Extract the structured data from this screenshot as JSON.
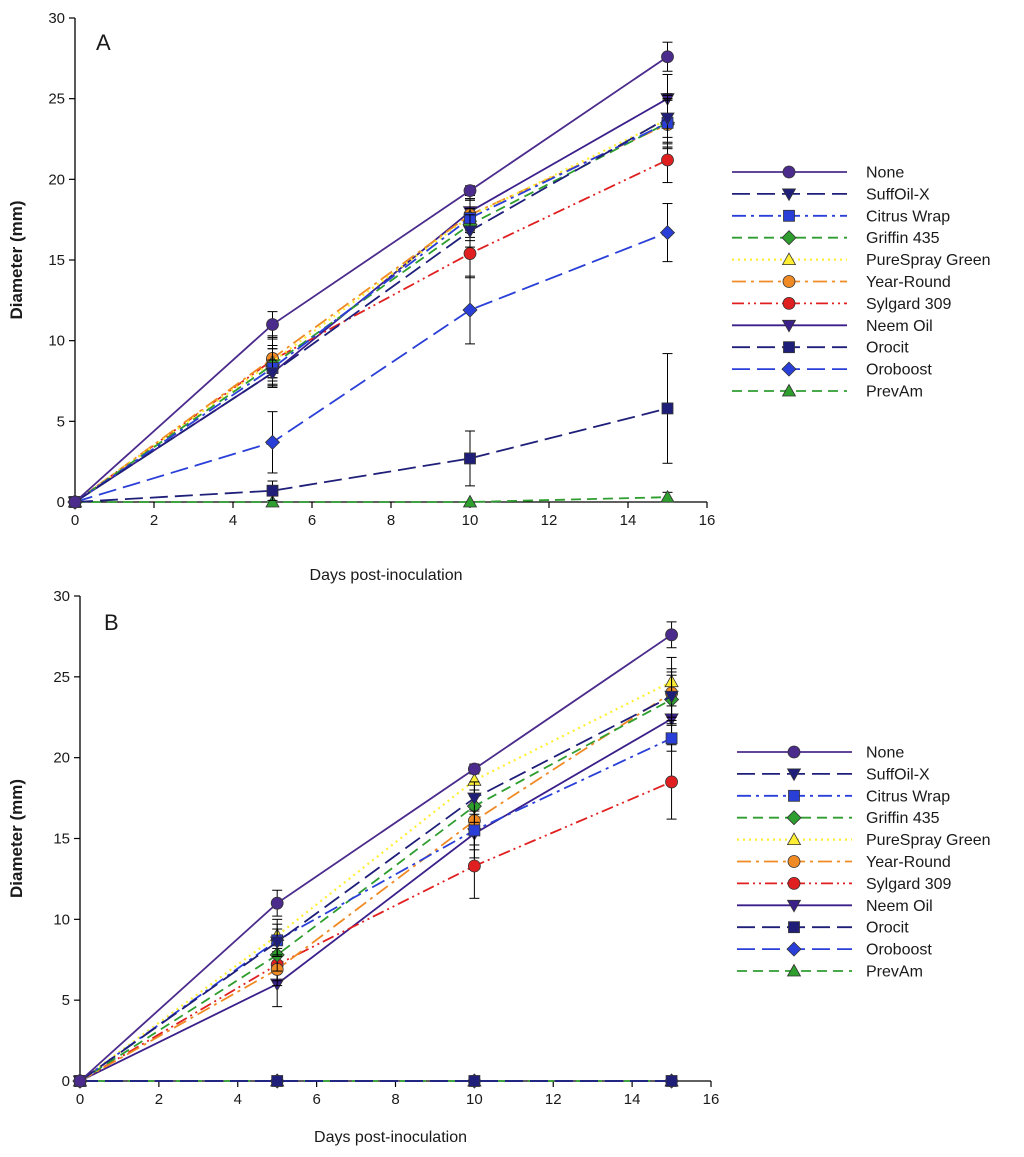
{
  "figure": {
    "background": "#ffffff"
  },
  "chart_data": [
    {
      "type": "line",
      "panel_label": "A",
      "xlabel": "Days post-inoculation",
      "ylabel": "Diameter (mm)",
      "xlim": [
        0,
        16
      ],
      "ylim": [
        0,
        30
      ],
      "xticks": [
        0,
        2,
        4,
        6,
        8,
        10,
        12,
        14,
        16
      ],
      "yticks": [
        0,
        5,
        10,
        15,
        20,
        25,
        30
      ],
      "x": [
        0,
        5,
        10,
        15
      ],
      "legend_position": "right",
      "series": [
        {
          "name": "None",
          "values": [
            0,
            11.0,
            19.3,
            27.6
          ],
          "errors": [
            0,
            0.8,
            0.3,
            0.9
          ],
          "color": "#4b2b8c",
          "marker": "circle",
          "dash": "solid"
        },
        {
          "name": "SuffOil-X",
          "values": [
            0,
            8.0,
            16.8,
            23.8
          ],
          "errors": [
            0,
            0.8,
            1.0,
            1.5
          ],
          "color": "#1f1f7a",
          "marker": "triangle-down",
          "dash": "longdash"
        },
        {
          "name": "Citrus Wrap",
          "values": [
            0,
            8.3,
            17.6,
            23.5
          ],
          "errors": [
            0,
            1.2,
            1.2,
            1.5
          ],
          "color": "#2a3fd8",
          "marker": "square",
          "dash": "dashdot"
        },
        {
          "name": "Griffin 435",
          "values": [
            0,
            8.5,
            17.2,
            23.5
          ],
          "errors": [
            0,
            1.0,
            1.0,
            1.5
          ],
          "color": "#2e9e2e",
          "marker": "diamond",
          "dash": "dash"
        },
        {
          "name": "PureSpray Green",
          "values": [
            0,
            8.7,
            17.7,
            23.7
          ],
          "errors": [
            0,
            1.0,
            1.0,
            1.5
          ],
          "color": "#ffee33",
          "marker": "triangle-up",
          "dash": "dot"
        },
        {
          "name": "Year-Round",
          "values": [
            0,
            8.9,
            17.8,
            23.4
          ],
          "errors": [
            0,
            1.2,
            1.0,
            1.5
          ],
          "color": "#f08a24",
          "marker": "circle",
          "dash": "dashdot"
        },
        {
          "name": "Sylgard 309",
          "values": [
            0,
            8.8,
            15.4,
            21.2
          ],
          "errors": [
            0,
            1.5,
            1.5,
            1.4
          ],
          "color": "#e02020",
          "marker": "circle",
          "dash": "dashdotdot"
        },
        {
          "name": "Neem Oil",
          "values": [
            0,
            8.0,
            18.0,
            25.0
          ],
          "errors": [
            0,
            0.8,
            1.0,
            1.5
          ],
          "color": "#3b1f8a",
          "marker": "triangle-down",
          "dash": "solid"
        },
        {
          "name": "Orocit",
          "values": [
            0,
            0.7,
            2.7,
            5.8
          ],
          "errors": [
            0,
            0.6,
            1.7,
            3.4
          ],
          "color": "#1f1f7a",
          "marker": "square",
          "dash": "longdash"
        },
        {
          "name": "Oroboost",
          "values": [
            0,
            3.7,
            11.9,
            16.7
          ],
          "errors": [
            0,
            1.9,
            2.1,
            1.8
          ],
          "color": "#2a3fd8",
          "marker": "diamond",
          "dash": "longdash"
        },
        {
          "name": "PrevAm",
          "values": [
            0,
            0.0,
            0.0,
            0.3
          ],
          "errors": [
            0,
            0,
            0,
            0.3
          ],
          "color": "#2e9e2e",
          "marker": "triangle-up",
          "dash": "dash"
        }
      ]
    },
    {
      "type": "line",
      "panel_label": "B",
      "xlabel": "Days post-inoculation",
      "ylabel": "Diameter (mm)",
      "xlim": [
        0,
        16
      ],
      "ylim": [
        0,
        30
      ],
      "xticks": [
        0,
        2,
        4,
        6,
        8,
        10,
        12,
        14,
        16
      ],
      "yticks": [
        0,
        5,
        10,
        15,
        20,
        25,
        30
      ],
      "x": [
        0,
        5,
        10,
        15
      ],
      "legend_position": "right",
      "series": [
        {
          "name": "None",
          "values": [
            0,
            11.0,
            19.3,
            27.6
          ],
          "errors": [
            0,
            0.8,
            0.3,
            0.8
          ],
          "color": "#4b2b8c",
          "marker": "circle",
          "dash": "solid"
        },
        {
          "name": "SuffOil-X",
          "values": [
            0,
            8.6,
            17.5,
            23.8
          ],
          "errors": [
            0,
            0.8,
            1.0,
            1.5
          ],
          "color": "#1f1f7a",
          "marker": "triangle-down",
          "dash": "longdash"
        },
        {
          "name": "Citrus Wrap",
          "values": [
            0,
            8.7,
            15.5,
            21.2
          ],
          "errors": [
            0,
            1.0,
            1.2,
            0.8
          ],
          "color": "#2a3fd8",
          "marker": "square",
          "dash": "dashdot"
        },
        {
          "name": "Griffin 435",
          "values": [
            0,
            7.8,
            17.0,
            23.6
          ],
          "errors": [
            0,
            1.0,
            1.0,
            1.5
          ],
          "color": "#2e9e2e",
          "marker": "diamond",
          "dash": "dash"
        },
        {
          "name": "PureSpray Green",
          "values": [
            0,
            9.0,
            18.6,
            24.7
          ],
          "errors": [
            0,
            1.0,
            1.0,
            1.5
          ],
          "color": "#ffee33",
          "marker": "triangle-up",
          "dash": "dot"
        },
        {
          "name": "Year-Round",
          "values": [
            0,
            6.9,
            16.1,
            24.0
          ],
          "errors": [
            0,
            1.0,
            1.5,
            1.5
          ],
          "color": "#f08a24",
          "marker": "circle",
          "dash": "dashdot"
        },
        {
          "name": "Sylgard 309",
          "values": [
            0,
            7.2,
            13.3,
            18.5
          ],
          "errors": [
            0,
            1.0,
            2.0,
            2.3
          ],
          "color": "#e02020",
          "marker": "circle",
          "dash": "dashdotdot"
        },
        {
          "name": "Neem Oil",
          "values": [
            0,
            6.0,
            15.3,
            22.4
          ],
          "errors": [
            0,
            1.4,
            1.5,
            1.5
          ],
          "color": "#3b1f8a",
          "marker": "triangle-down",
          "dash": "solid"
        },
        {
          "name": "Orocit",
          "values": [
            0,
            0.0,
            0.0,
            0.0
          ],
          "errors": [
            0,
            0,
            0,
            0
          ],
          "color": "#1f1f7a",
          "marker": "square",
          "dash": "longdash"
        },
        {
          "name": "Oroboost",
          "values": [
            0,
            0.0,
            0.0,
            0.0
          ],
          "errors": [
            0,
            0,
            0,
            0
          ],
          "color": "#2a3fd8",
          "marker": "diamond",
          "dash": "longdash"
        },
        {
          "name": "PrevAm",
          "values": [
            0,
            0.0,
            0.0,
            0.0
          ],
          "errors": [
            0,
            0,
            0,
            0
          ],
          "color": "#2e9e2e",
          "marker": "triangle-up",
          "dash": "dash"
        }
      ]
    }
  ]
}
